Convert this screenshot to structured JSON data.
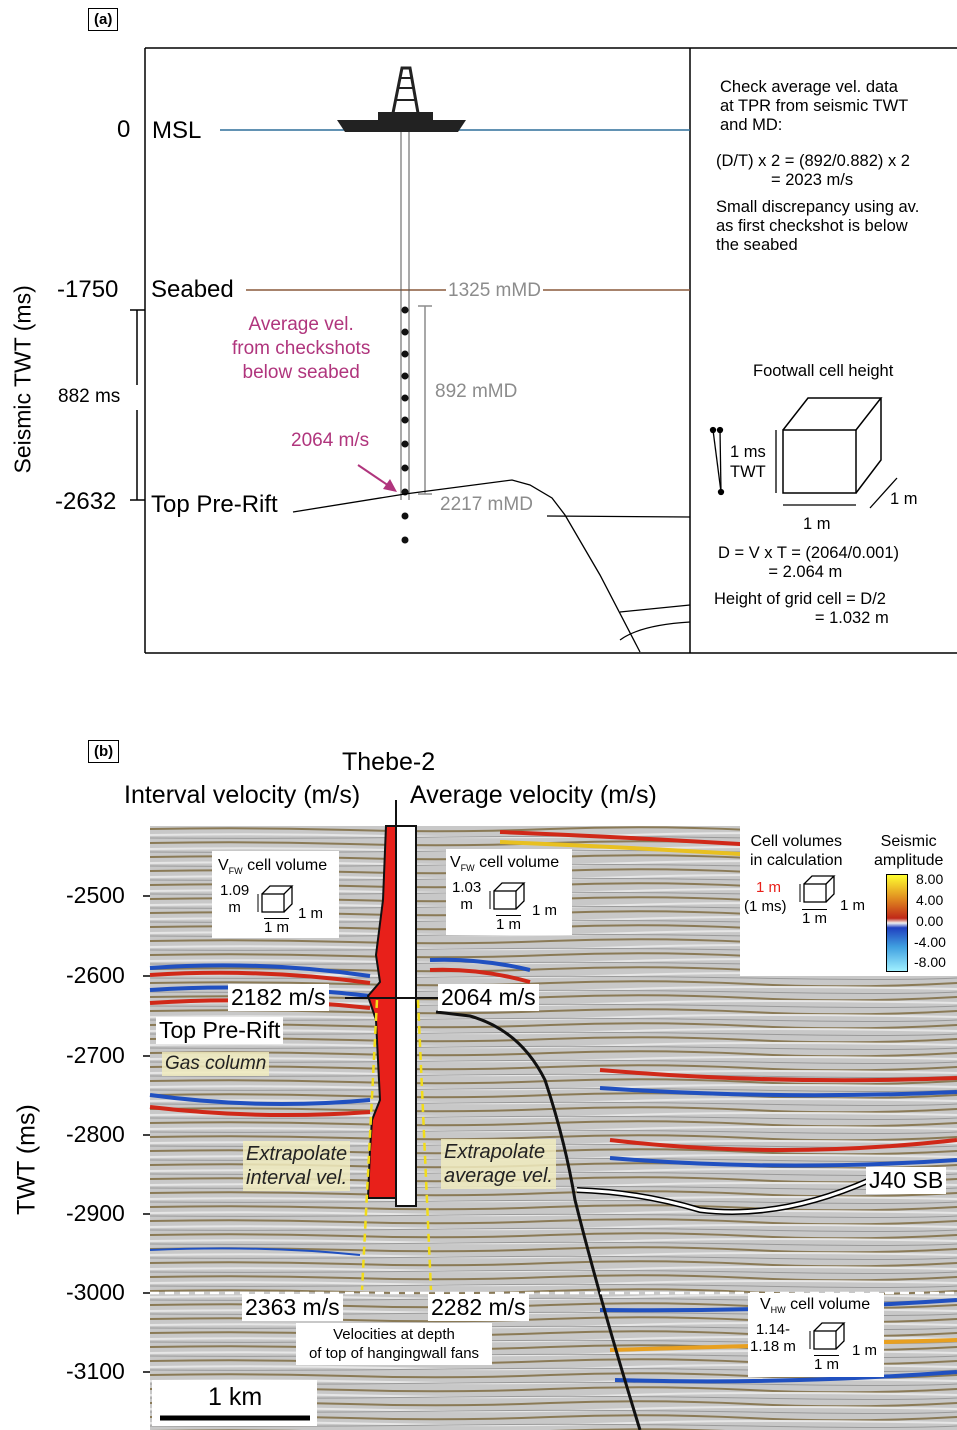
{
  "panel_a": {
    "tag": "(a)",
    "axis_label": "Seismic TWT (ms)",
    "ticks": [
      {
        "value": "0",
        "label": "MSL"
      },
      {
        "value": "-1750",
        "label": "Seabed"
      },
      {
        "value": "-2632",
        "label": "Top Pre-Rift"
      }
    ],
    "interval_label": "882 ms",
    "depths": {
      "seabed": "1325 mMD",
      "interval": "892 mMD",
      "tpr": "2217 mMD"
    },
    "avg_note": "Average vel.\nfrom checkshots\nbelow seabed",
    "velocity": "2064 m/s",
    "check_note_1": "Check average vel. data\nat TPR from seismic TWT\nand MD:",
    "check_note_2": "(D/T) x 2 = (892/0.882) x 2\n            = 2023 m/s",
    "check_note_3": "Small discrepancy using av.\nas first checkshot is below\nthe seabed",
    "cell_title": "Footwall cell height",
    "cell_ms": "1 ms",
    "cell_twt": "TWT",
    "cell_m_side": "1 m",
    "cell_m_bottom": "1 m",
    "formula_1": "D = V x T = (2064/0.001)\n           = 2.064 m",
    "formula_2": "Height of grid cell = D/2\n                      = 1.032 m"
  },
  "panel_b": {
    "tag": "(b)",
    "well": "Thebe-2",
    "left_header": "Interval velocity (m/s)",
    "right_header": "Average velocity (m/s)",
    "axis_label": "TWT (ms)",
    "ticks": [
      "-2500",
      "-2600",
      "-2700",
      "-2800",
      "-2900",
      "-3000",
      "-3100"
    ],
    "v_interval_top": "2182 m/s",
    "v_average_top": "2064 m/s",
    "v_interval_bottom": "2363 m/s",
    "v_average_bottom": "2282 m/s",
    "top_pre_rift": "Top Pre-Rift",
    "gas_column": "Gas column",
    "extrap_interval": "Extrapolate\ninterval vel.",
    "extrap_average": "Extrapolate\naverage vel.",
    "j40": "J40 SB",
    "fans_note": "Velocities at depth\nof top of hangingwall fans",
    "scale_bar": "1 km",
    "vfw1_title_v": "V",
    "vfw1_title_sub": "FW",
    "vfw1_title_rest": " cell volume",
    "vfw1_h": "1.09\nm",
    "vfw1_side": "1 m",
    "vfw1_bottom": "1 m",
    "vfw2_h": "1.03\nm",
    "vhw_sub": "HW",
    "vhw_h": "1.14-\n1.18 m",
    "legend_cells_title": "Cell volumes\nin calculation",
    "legend_cells_h": "1 m",
    "legend_cells_ms": "(1 ms)",
    "legend_amp_title": "Seismic\namplitude",
    "amp_ticks": [
      "8.00",
      "4.00",
      "0.00",
      "-4.00",
      "-8.00"
    ],
    "colors": {
      "interval": "#e8201a",
      "avg_label": "#b0357d",
      "seabed_line": "#8a5a3c",
      "msl_line": "#2f6f9a",
      "depth_grey": "#8c8c8c",
      "extrap_dash": "#f2dd1a"
    }
  }
}
